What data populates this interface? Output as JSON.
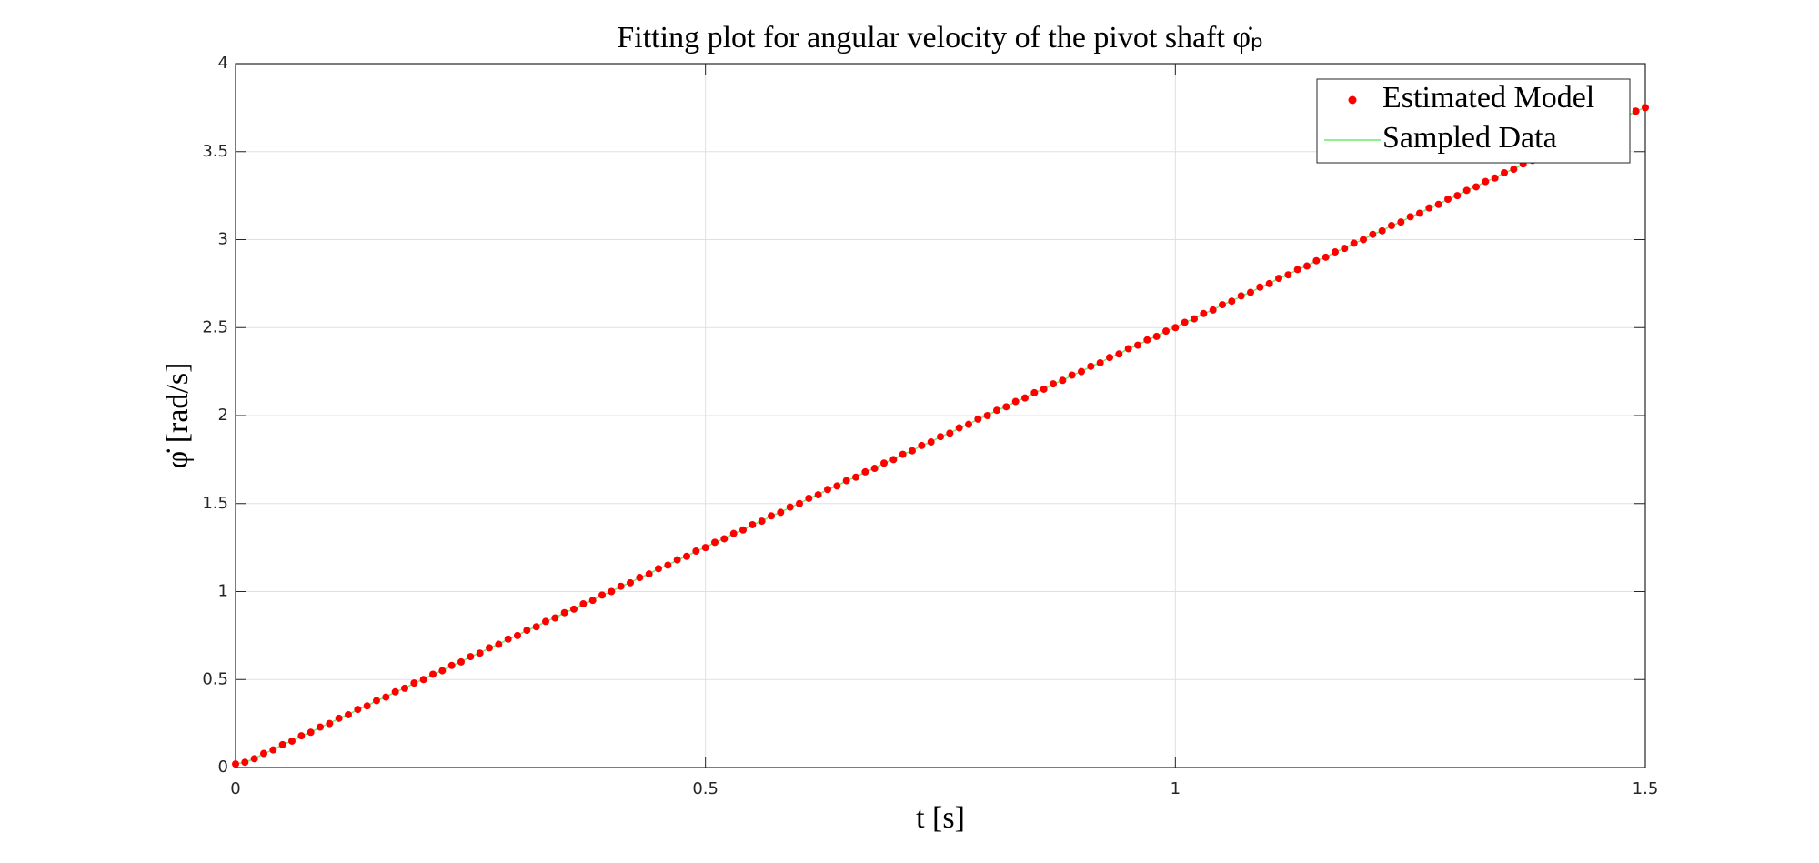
{
  "chart_data": {
    "type": "scatter",
    "title": "Fitting plot for angular velocity of the pivot shaft φ̇ₚ",
    "x_label": "t [s]",
    "y_label": "φ̇ [rad/s]",
    "x": [
      0,
      0.01,
      0.02,
      0.03,
      0.04,
      0.05,
      0.06,
      0.07,
      0.08,
      0.09,
      0.1,
      0.11,
      0.12,
      0.13,
      0.14,
      0.15,
      0.16,
      0.17,
      0.18,
      0.19,
      0.2,
      0.21,
      0.22,
      0.23,
      0.24,
      0.25,
      0.26,
      0.27,
      0.28,
      0.29,
      0.3,
      0.31,
      0.32,
      0.33,
      0.34,
      0.35,
      0.36,
      0.37,
      0.38,
      0.39,
      0.4,
      0.41,
      0.42,
      0.43,
      0.44,
      0.45,
      0.46,
      0.47,
      0.48,
      0.49,
      0.5,
      0.51,
      0.52,
      0.53,
      0.54,
      0.55,
      0.56,
      0.57,
      0.58,
      0.59,
      0.6,
      0.61,
      0.62,
      0.63,
      0.64,
      0.65,
      0.66,
      0.67,
      0.68,
      0.69,
      0.7,
      0.71,
      0.72,
      0.73,
      0.74,
      0.75,
      0.76,
      0.77,
      0.78,
      0.79,
      0.8,
      0.81,
      0.82,
      0.83,
      0.84,
      0.85,
      0.86,
      0.87,
      0.88,
      0.89,
      0.9,
      0.91,
      0.92,
      0.93,
      0.94,
      0.95,
      0.96,
      0.97,
      0.98,
      0.99,
      1,
      1.01,
      1.02,
      1.03,
      1.04,
      1.05,
      1.06,
      1.07,
      1.08,
      1.09,
      1.1,
      1.11,
      1.12,
      1.13,
      1.14,
      1.15,
      1.16,
      1.17,
      1.18,
      1.19,
      1.2,
      1.21,
      1.22,
      1.23,
      1.24,
      1.25,
      1.26,
      1.27,
      1.28,
      1.29,
      1.3,
      1.31,
      1.32,
      1.33,
      1.34,
      1.35,
      1.36,
      1.37,
      1.38,
      1.39,
      1.4,
      1.41,
      1.42,
      1.43,
      1.44,
      1.45,
      1.46,
      1.47,
      1.48,
      1.49,
      1.5
    ],
    "series": [
      {
        "name": "Estimated Model",
        "color": "#ff0000",
        "values": [
          0.02,
          0.03,
          0.05,
          0.08,
          0.1,
          0.13,
          0.15,
          0.18,
          0.2,
          0.23,
          0.25,
          0.28,
          0.3,
          0.33,
          0.35,
          0.38,
          0.4,
          0.43,
          0.45,
          0.48,
          0.5,
          0.53,
          0.55,
          0.58,
          0.6,
          0.63,
          0.65,
          0.68,
          0.7,
          0.73,
          0.75,
          0.78,
          0.8,
          0.83,
          0.85,
          0.88,
          0.9,
          0.93,
          0.95,
          0.98,
          1,
          1.03,
          1.05,
          1.08,
          1.1,
          1.13,
          1.15,
          1.18,
          1.2,
          1.23,
          1.25,
          1.28,
          1.3,
          1.33,
          1.35,
          1.38,
          1.4,
          1.43,
          1.45,
          1.48,
          1.5,
          1.53,
          1.55,
          1.58,
          1.6,
          1.63,
          1.65,
          1.68,
          1.7,
          1.73,
          1.75,
          1.78,
          1.8,
          1.83,
          1.85,
          1.88,
          1.9,
          1.93,
          1.95,
          1.98,
          2,
          2.03,
          2.05,
          2.08,
          2.1,
          2.13,
          2.15,
          2.18,
          2.2,
          2.23,
          2.25,
          2.28,
          2.3,
          2.33,
          2.35,
          2.38,
          2.4,
          2.43,
          2.45,
          2.48,
          2.5,
          2.53,
          2.55,
          2.58,
          2.6,
          2.63,
          2.65,
          2.68,
          2.7,
          2.73,
          2.75,
          2.78,
          2.8,
          2.83,
          2.85,
          2.88,
          2.9,
          2.93,
          2.95,
          2.98,
          3,
          3.03,
          3.05,
          3.08,
          3.1,
          3.13,
          3.15,
          3.18,
          3.2,
          3.23,
          3.25,
          3.28,
          3.3,
          3.33,
          3.35,
          3.38,
          3.4,
          3.43,
          3.45,
          3.48,
          3.5,
          3.53,
          3.55,
          3.58,
          3.6,
          3.63,
          3.65,
          3.68,
          3.7,
          3.73,
          3.75
        ]
      },
      {
        "name": "Sampled Data",
        "color": "#66ee66",
        "line": true,
        "values": [
          0.02,
          0.03,
          0.05,
          0.08,
          0.1,
          0.13,
          0.15,
          0.18,
          0.2,
          0.23,
          0.25,
          0.28,
          0.3,
          0.33,
          0.35,
          0.38,
          0.4,
          0.43,
          0.45,
          0.48,
          0.5,
          0.53,
          0.55,
          0.58,
          0.6,
          0.63,
          0.65,
          0.68,
          0.7,
          0.73,
          0.75,
          0.78,
          0.8,
          0.83,
          0.85,
          0.88,
          0.9,
          0.93,
          0.95,
          0.98,
          1,
          1.03,
          1.05,
          1.08,
          1.1,
          1.13,
          1.15,
          1.18,
          1.2,
          1.23,
          1.25,
          1.28,
          1.3,
          1.33,
          1.35,
          1.38,
          1.4,
          1.43,
          1.45,
          1.48,
          1.5,
          1.53,
          1.55,
          1.58,
          1.6,
          1.63,
          1.65,
          1.68,
          1.7,
          1.73,
          1.75,
          1.78,
          1.8,
          1.83,
          1.85,
          1.88,
          1.9,
          1.93,
          1.95,
          1.98,
          2,
          2.03,
          2.05,
          2.08,
          2.1,
          2.13,
          2.15,
          2.18,
          2.2,
          2.23,
          2.25,
          2.28,
          2.3,
          2.33,
          2.35,
          2.38,
          2.4,
          2.43,
          2.45,
          2.48,
          2.5,
          2.53,
          2.55,
          2.58,
          2.6,
          2.63,
          2.65,
          2.68,
          2.7,
          2.73,
          2.75,
          2.78,
          2.8,
          2.83,
          2.85,
          2.88,
          2.9,
          2.93,
          2.95,
          2.98,
          3,
          3.03,
          3.05,
          3.08,
          3.1,
          3.13,
          3.15,
          3.18,
          3.2,
          3.23,
          3.25,
          3.28,
          3.3,
          3.33,
          3.35,
          3.38,
          3.4,
          3.43,
          3.45,
          3.48,
          3.5,
          3.53,
          3.55,
          3.58,
          3.6,
          3.63,
          3.65,
          3.68,
          3.7,
          3.73,
          3.75
        ]
      }
    ],
    "xlim": [
      0,
      1.5
    ],
    "xticks": [
      0,
      0.5,
      1,
      1.5
    ],
    "ylim": [
      0,
      4
    ],
    "yticks": [
      0,
      0.5,
      1,
      1.5,
      2,
      2.5,
      3,
      3.5,
      4
    ],
    "grid": true,
    "legend": "northeast"
  }
}
